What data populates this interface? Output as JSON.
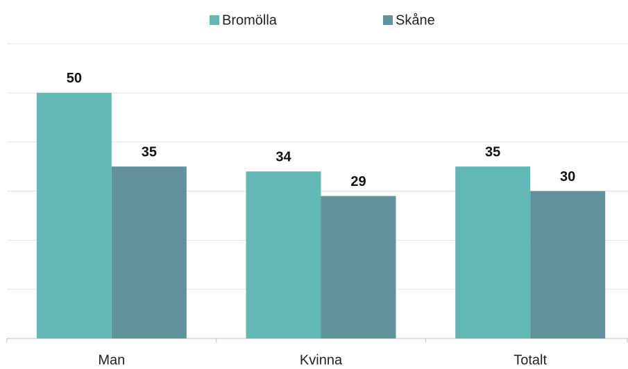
{
  "chart_data": {
    "type": "bar",
    "categories": [
      "Man",
      "Kvinna",
      "Totalt"
    ],
    "series": [
      {
        "name": "Bromölla",
        "color": "#62b8b5",
        "values": [
          50,
          34,
          35
        ]
      },
      {
        "name": "Skåne",
        "color": "#62939c",
        "values": [
          35,
          29,
          30
        ]
      }
    ],
    "ylim": [
      0,
      60
    ],
    "yticks": [
      0,
      10,
      20,
      30,
      40,
      50,
      60
    ],
    "grid": true,
    "legend": "top"
  }
}
